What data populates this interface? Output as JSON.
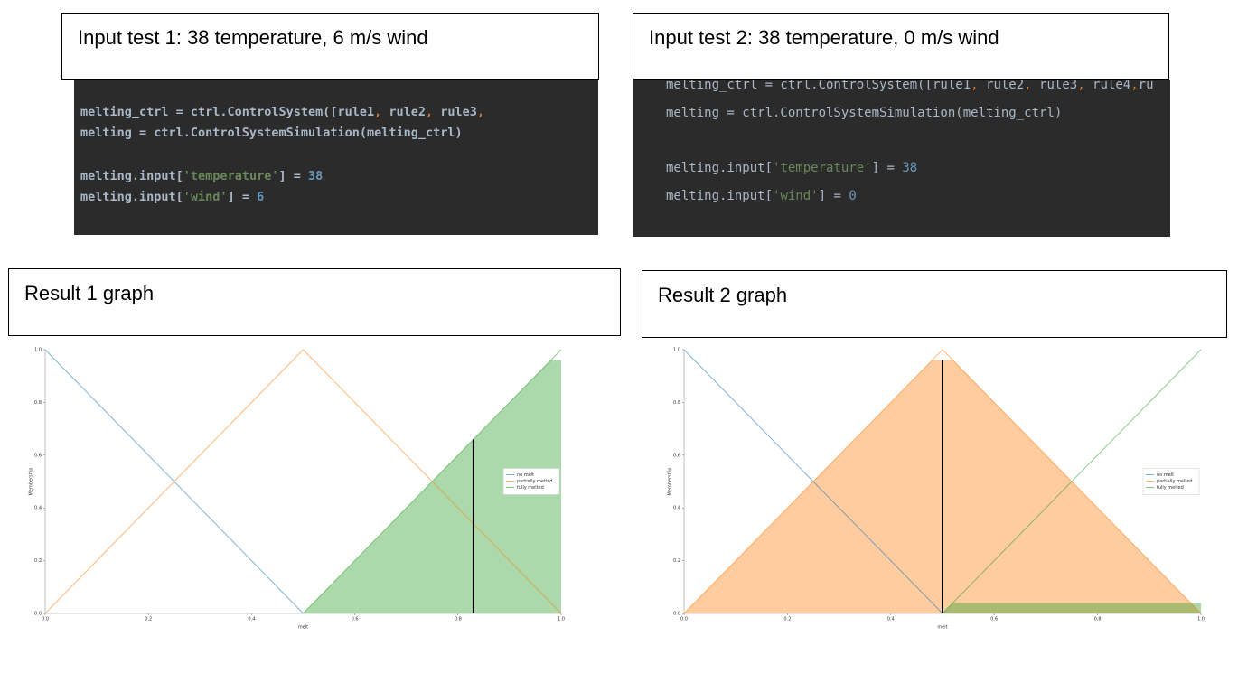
{
  "tests": [
    {
      "title": "Input test 1: 38 temperature, 6 m/s wind",
      "code": [
        [
          [
            "melting_ctrl = ctrl.ControlSystem([rule1",
            "#a9b7c6"
          ],
          [
            ",",
            "#cc7832"
          ],
          [
            " rule2",
            "#a9b7c6"
          ],
          [
            ",",
            "#cc7832"
          ],
          [
            " rule3",
            "#a9b7c6"
          ],
          [
            ",",
            "#cc7832"
          ]
        ],
        [
          [
            "melting = ctrl.ControlSystemSimulation(melting_ctrl)",
            "#a9b7c6"
          ]
        ],
        [
          [
            "melting.input[",
            "#a9b7c6"
          ],
          [
            "'temperature'",
            "#6a8759"
          ],
          [
            "] = ",
            "#a9b7c6"
          ],
          [
            "38",
            "#6897bb"
          ]
        ],
        [
          [
            "melting.input[",
            "#a9b7c6"
          ],
          [
            "'wind'",
            "#6a8759"
          ],
          [
            "] = ",
            "#a9b7c6"
          ],
          [
            "6",
            "#6897bb"
          ]
        ]
      ]
    },
    {
      "title": "Input test 2: 38 temperature, 0 m/s wind",
      "code": [
        [
          [
            "melting_ctrl = ctrl.ControlSystem([rule1",
            "#a9b7c6"
          ],
          [
            ",",
            "#cc7832"
          ],
          [
            " rule2",
            "#a9b7c6"
          ],
          [
            ",",
            "#cc7832"
          ],
          [
            " rule3",
            "#a9b7c6"
          ],
          [
            ",",
            "#cc7832"
          ],
          [
            " rule4",
            "#a9b7c6"
          ],
          [
            ",",
            "#cc7832"
          ],
          [
            "ru",
            "#a9b7c6"
          ]
        ],
        [
          [
            "melting = ctrl.ControlSystemSimulation(melting_ctrl)",
            "#a9b7c6"
          ]
        ],
        [
          [
            "melting.input[",
            "#a9b7c6"
          ],
          [
            "'temperature'",
            "#6a8759"
          ],
          [
            "] = ",
            "#a9b7c6"
          ],
          [
            "38",
            "#6897bb"
          ]
        ],
        [
          [
            "melting.input[",
            "#a9b7c6"
          ],
          [
            "'wind'",
            "#6a8759"
          ],
          [
            "] = ",
            "#a9b7c6"
          ],
          [
            "0",
            "#6897bb"
          ]
        ]
      ]
    }
  ],
  "results": [
    {
      "title": "Result 1 graph"
    },
    {
      "title": "Result 2 graph"
    }
  ],
  "chart_data": [
    {
      "type": "line",
      "xlabel": "melt",
      "ylabel": "Membership",
      "legend": "center right",
      "grid": false,
      "xlim": [
        0,
        1
      ],
      "ylim": [
        0,
        1
      ],
      "xticks": [
        {
          "value": 0,
          "label": "0.0"
        },
        {
          "value": 0.2,
          "label": "0.2"
        },
        {
          "value": 0.4,
          "label": "0.4"
        },
        {
          "value": 0.6,
          "label": "0.6"
        },
        {
          "value": 0.8,
          "label": "0.8"
        },
        {
          "value": 1,
          "label": "1.0"
        }
      ],
      "yticks": [
        {
          "value": 0,
          "label": "0.0"
        },
        {
          "value": 0.2,
          "label": "0.2"
        },
        {
          "value": 0.4,
          "label": "0.4"
        },
        {
          "value": 0.6,
          "label": "0.6"
        },
        {
          "value": 0.8,
          "label": "0.8"
        },
        {
          "value": 1,
          "label": "1.0"
        }
      ],
      "series": [
        {
          "name": "no melt",
          "color": "#1f77b4",
          "x": [
            0,
            0.5
          ],
          "values": [
            1,
            0
          ]
        },
        {
          "name": "partially melted",
          "color": "#ff7f0e",
          "x": [
            0,
            0.5,
            1
          ],
          "values": [
            0,
            1,
            0
          ]
        },
        {
          "name": "fully melted",
          "color": "#2ca02c",
          "x": [
            0.5,
            1
          ],
          "values": [
            0,
            1
          ]
        }
      ],
      "fills": [
        {
          "color": "#2ca02c",
          "x": [
            0.5,
            0.98,
            1
          ],
          "values": [
            0,
            0.96,
            0.96
          ]
        }
      ],
      "centroid": {
        "x": 0.83,
        "y": 0.66
      }
    },
    {
      "type": "line",
      "xlabel": "melt",
      "ylabel": "Membership",
      "legend": "center right",
      "grid": false,
      "xlim": [
        0,
        1
      ],
      "ylim": [
        0,
        1
      ],
      "xticks": [
        {
          "value": 0,
          "label": "0.0"
        },
        {
          "value": 0.2,
          "label": "0.2"
        },
        {
          "value": 0.4,
          "label": "0.4"
        },
        {
          "value": 0.6,
          "label": "0.6"
        },
        {
          "value": 0.8,
          "label": "0.8"
        },
        {
          "value": 1,
          "label": "1.0"
        }
      ],
      "yticks": [
        {
          "value": 0,
          "label": "0.0"
        },
        {
          "value": 0.2,
          "label": "0.2"
        },
        {
          "value": 0.4,
          "label": "0.4"
        },
        {
          "value": 0.6,
          "label": "0.6"
        },
        {
          "value": 0.8,
          "label": "0.8"
        },
        {
          "value": 1,
          "label": "1.0"
        }
      ],
      "series": [
        {
          "name": "no melt",
          "color": "#1f77b4",
          "x": [
            0,
            0.5
          ],
          "values": [
            1,
            0
          ]
        },
        {
          "name": "partially melted",
          "color": "#ff7f0e",
          "x": [
            0,
            0.5,
            1
          ],
          "values": [
            0,
            1,
            0
          ]
        },
        {
          "name": "fully melted",
          "color": "#2ca02c",
          "x": [
            0.5,
            1
          ],
          "values": [
            0,
            1
          ]
        }
      ],
      "fills": [
        {
          "color": "#ff7f0e",
          "x": [
            0,
            0.48,
            0.52,
            1
          ],
          "values": [
            0,
            0.96,
            0.96,
            0
          ]
        },
        {
          "color": "#2ca02c",
          "x": [
            0.5,
            0.52,
            1
          ],
          "values": [
            0,
            0.04,
            0.04
          ]
        }
      ],
      "centroid": {
        "x": 0.5,
        "y": 0.96
      }
    }
  ]
}
